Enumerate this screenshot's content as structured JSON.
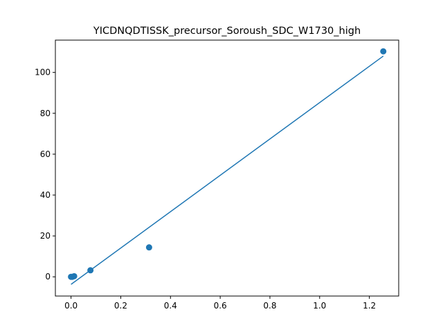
{
  "chart_data": {
    "type": "scatter",
    "title": "YICDNQDTISSK_precursor_Soroush_SDC_W1730_high",
    "xlabel": "",
    "ylabel": "",
    "xlim": [
      -0.063,
      1.318
    ],
    "ylim": [
      -9.4,
      115.8
    ],
    "xticks": [
      0.0,
      0.2,
      0.4,
      0.6,
      0.8,
      1.0,
      1.2
    ],
    "xtick_labels": [
      "0.0",
      "0.2",
      "0.4",
      "0.6",
      "0.8",
      "1.0",
      "1.2"
    ],
    "yticks": [
      0,
      20,
      40,
      60,
      80,
      100
    ],
    "ytick_labels": [
      "0",
      "20",
      "40",
      "60",
      "80",
      "100"
    ],
    "grid": false,
    "color": "#1f77b4",
    "series": [
      {
        "kind": "points",
        "x": [
          0.0,
          0.005,
          0.0125,
          0.078,
          0.314,
          1.256
        ],
        "y": [
          0.0,
          0.0,
          0.3,
          3.2,
          14.4,
          110.3
        ]
      },
      {
        "kind": "fit-line",
        "x": [
          0.0,
          1.256
        ],
        "y": [
          -3.7,
          108.0
        ]
      }
    ]
  }
}
